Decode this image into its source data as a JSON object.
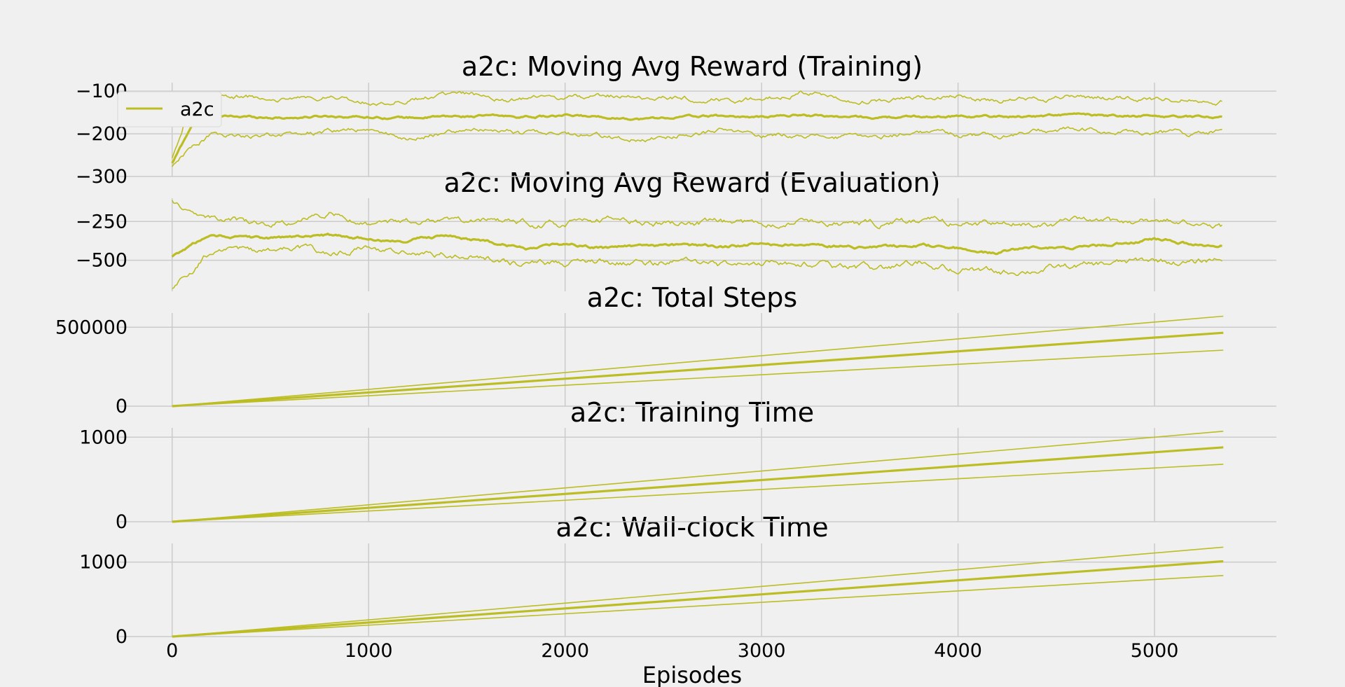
{
  "colors": {
    "series": "#bcbd22",
    "grid": "#cbcbcb",
    "background": "#f0f0f0"
  },
  "chart_data": [
    {
      "type": "line",
      "title": "a2c: Moving Avg Reward (Training)",
      "xlabel": "",
      "ylabel": "",
      "xlim": [
        -270,
        5620
      ],
      "ylim": [
        -300,
        -80
      ],
      "yticks": [
        -100,
        -200,
        -300
      ],
      "ytick_labels": [
        "−100",
        "−200",
        "−300"
      ],
      "grid": true,
      "legend": {
        "placement": "top-left",
        "entries": [
          "a2c"
        ]
      },
      "series": [
        {
          "name": "a2c",
          "role": "mean",
          "x": [
            0,
            100,
            200,
            400,
            600,
            800,
            1000,
            1200,
            1400,
            1600,
            1800,
            2000,
            2200,
            2400,
            2600,
            2800,
            3000,
            3200,
            3400,
            3600,
            3800,
            4000,
            4200,
            4400,
            4600,
            4800,
            5000,
            5200,
            5350
          ],
          "y": [
            -270,
            -180,
            -160,
            -160,
            -162,
            -158,
            -160,
            -162,
            -160,
            -158,
            -160,
            -158,
            -160,
            -165,
            -160,
            -158,
            -162,
            -155,
            -160,
            -162,
            -160,
            -158,
            -160,
            -158,
            -155,
            -160,
            -158,
            -160,
            -160
          ]
        },
        {
          "role": "upper",
          "x": [
            0,
            100,
            200,
            400,
            600,
            800,
            1000,
            1200,
            1400,
            1600,
            1800,
            2000,
            2200,
            2400,
            2600,
            2800,
            3000,
            3200,
            3400,
            3600,
            3800,
            4000,
            4200,
            4400,
            4600,
            4800,
            5000,
            5200,
            5350
          ],
          "y": [
            -260,
            -120,
            -110,
            -115,
            -120,
            -115,
            -125,
            -118,
            -112,
            -110,
            -120,
            -115,
            -110,
            -115,
            -118,
            -120,
            -118,
            -100,
            -120,
            -122,
            -118,
            -115,
            -120,
            -118,
            -112,
            -118,
            -120,
            -115,
            -122
          ]
        },
        {
          "role": "lower",
          "x": [
            0,
            100,
            200,
            400,
            600,
            800,
            1000,
            1200,
            1400,
            1600,
            1800,
            2000,
            2200,
            2400,
            2600,
            2800,
            3000,
            3200,
            3400,
            3600,
            3800,
            4000,
            4200,
            4400,
            4600,
            4800,
            5000,
            5200,
            5350
          ],
          "y": [
            -280,
            -230,
            -200,
            -205,
            -200,
            -195,
            -190,
            -210,
            -195,
            -190,
            -200,
            -195,
            -205,
            -215,
            -200,
            -195,
            -205,
            -200,
            -210,
            -205,
            -195,
            -200,
            -205,
            -195,
            -190,
            -200,
            -195,
            -200,
            -190
          ]
        }
      ]
    },
    {
      "type": "line",
      "title": "a2c: Moving Avg Reward (Evaluation)",
      "xlabel": "",
      "ylabel": "",
      "xlim": [
        -270,
        5620
      ],
      "ylim": [
        -700,
        -100
      ],
      "yticks": [
        -250,
        -500
      ],
      "ytick_labels": [
        "−250",
        "−500"
      ],
      "grid": true,
      "series": [
        {
          "role": "mean",
          "x": [
            0,
            100,
            200,
            400,
            600,
            800,
            1000,
            1200,
            1400,
            1600,
            1800,
            2000,
            2200,
            2400,
            2600,
            2800,
            3000,
            3200,
            3400,
            3600,
            3800,
            4000,
            4200,
            4400,
            4600,
            4800,
            5000,
            5200,
            5350
          ],
          "y": [
            -480,
            -400,
            -340,
            -360,
            -350,
            -340,
            -360,
            -370,
            -340,
            -380,
            -420,
            -400,
            -420,
            -410,
            -400,
            -420,
            -390,
            -400,
            -410,
            -420,
            -400,
            -420,
            -450,
            -410,
            -420,
            -400,
            -360,
            -400,
            -400
          ]
        },
        {
          "role": "upper",
          "x": [
            0,
            100,
            200,
            400,
            600,
            800,
            1000,
            1200,
            1400,
            1600,
            1800,
            2000,
            2200,
            2400,
            2600,
            2800,
            3000,
            3200,
            3400,
            3600,
            3800,
            4000,
            4200,
            4400,
            4600,
            4800,
            5000,
            5200,
            5350
          ],
          "y": [
            -120,
            -200,
            -220,
            -260,
            -250,
            -200,
            -260,
            -250,
            -260,
            -240,
            -260,
            -270,
            -240,
            -260,
            -250,
            -270,
            -260,
            -240,
            -260,
            -270,
            -250,
            -260,
            -270,
            -260,
            -250,
            -260,
            -240,
            -260,
            -280
          ]
        },
        {
          "role": "lower",
          "x": [
            0,
            100,
            200,
            400,
            600,
            800,
            1000,
            1200,
            1400,
            1600,
            1800,
            2000,
            2200,
            2400,
            2600,
            2800,
            3000,
            3200,
            3400,
            3600,
            3800,
            4000,
            4200,
            4400,
            4600,
            4800,
            5000,
            5200,
            5350
          ],
          "y": [
            -690,
            -560,
            -440,
            -440,
            -420,
            -440,
            -430,
            -450,
            -460,
            -480,
            -530,
            -520,
            -510,
            -530,
            -510,
            -540,
            -520,
            -510,
            -540,
            -560,
            -520,
            -560,
            -580,
            -560,
            -540,
            -520,
            -500,
            -520,
            -480
          ]
        }
      ]
    },
    {
      "type": "line",
      "title": "a2c: Total Steps",
      "xlabel": "",
      "ylabel": "",
      "xlim": [
        -270,
        5620
      ],
      "ylim": [
        0,
        590000
      ],
      "yticks": [
        500000,
        0
      ],
      "ytick_labels": [
        "500000",
        "0"
      ],
      "grid": true,
      "series": [
        {
          "role": "mean",
          "x": [
            0,
            5350
          ],
          "y": [
            0,
            465000
          ]
        },
        {
          "role": "upper",
          "x": [
            0,
            5350
          ],
          "y": [
            0,
            570000
          ]
        },
        {
          "role": "lower",
          "x": [
            0,
            5350
          ],
          "y": [
            0,
            355000
          ]
        }
      ]
    },
    {
      "type": "line",
      "title": "a2c: Training Time",
      "xlabel": "",
      "ylabel": "",
      "xlim": [
        -270,
        5620
      ],
      "ylim": [
        0,
        1110
      ],
      "yticks": [
        1000,
        0
      ],
      "ytick_labels": [
        "1000",
        "0"
      ],
      "grid": true,
      "series": [
        {
          "role": "mean",
          "x": [
            0,
            5350
          ],
          "y": [
            0,
            880
          ]
        },
        {
          "role": "upper",
          "x": [
            0,
            5350
          ],
          "y": [
            0,
            1070
          ]
        },
        {
          "role": "lower",
          "x": [
            0,
            5350
          ],
          "y": [
            0,
            680
          ]
        }
      ]
    },
    {
      "type": "line",
      "title": "a2c: Wall-clock Time",
      "xlabel": "Episodes",
      "ylabel": "",
      "xlim": [
        -270,
        5620
      ],
      "ylim": [
        0,
        1250
      ],
      "yticks": [
        1000,
        0
      ],
      "ytick_labels": [
        "1000",
        "0"
      ],
      "xticks": [
        0,
        1000,
        2000,
        3000,
        4000,
        5000
      ],
      "xtick_labels": [
        "0",
        "1000",
        "2000",
        "3000",
        "4000",
        "5000"
      ],
      "grid": true,
      "series": [
        {
          "role": "mean",
          "x": [
            0,
            5350
          ],
          "y": [
            0,
            1010
          ]
        },
        {
          "role": "upper",
          "x": [
            0,
            5350
          ],
          "y": [
            0,
            1200
          ]
        },
        {
          "role": "lower",
          "x": [
            0,
            5350
          ],
          "y": [
            0,
            820
          ]
        }
      ]
    }
  ]
}
